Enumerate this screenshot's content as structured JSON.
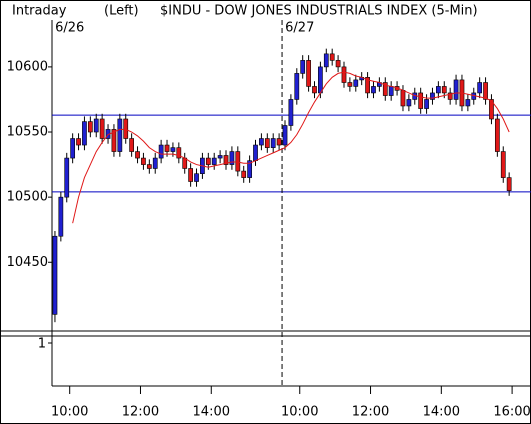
{
  "chart_data": {
    "type": "candlestick",
    "header": [
      "Intraday",
      "(Left)",
      "$INDU - DOW JONES INDUSTRIALS INDEX (5-Min)"
    ],
    "x": [
      0,
      1,
      2,
      3,
      4,
      5,
      6,
      7,
      8,
      9,
      10,
      11,
      12,
      13,
      14,
      15,
      16,
      17,
      18,
      19,
      20,
      21,
      22,
      23,
      24,
      25,
      26,
      27,
      28,
      29,
      30,
      31,
      32,
      33,
      34,
      35,
      36,
      37,
      38,
      39,
      40,
      41,
      42,
      43,
      44,
      45,
      46,
      47,
      48,
      49,
      50,
      51,
      52,
      53,
      54,
      55,
      56,
      57,
      58,
      59,
      60,
      61,
      62,
      63,
      64,
      65,
      66,
      67,
      68,
      69,
      70,
      71,
      72,
      73,
      74,
      75,
      76,
      77
    ],
    "open": [
      10410,
      10470,
      10500,
      10530,
      10545,
      10540,
      10558,
      10550,
      10560,
      10545,
      10552,
      10535,
      10560,
      10545,
      10535,
      10530,
      10525,
      10522,
      10530,
      10540,
      10535,
      10538,
      10530,
      10522,
      10512,
      10518,
      10530,
      10525,
      10530,
      10532,
      10525,
      10535,
      10520,
      10515,
      10528,
      10540,
      10545,
      10538,
      10545,
      10540,
      10555,
      10575,
      10595,
      10605,
      10585,
      10580,
      10600,
      10610,
      10605,
      10600,
      10588,
      10585,
      10590,
      10592,
      10580,
      10585,
      10588,
      10578,
      10585,
      10582,
      10570,
      10575,
      10580,
      10568,
      10575,
      10580,
      10585,
      10580,
      10575,
      10590,
      10570,
      10575,
      10580,
      10588,
      10575,
      10560,
      10535,
      10515
    ],
    "high": [
      10474,
      10504,
      10534,
      10549,
      10549,
      10562,
      10562,
      10564,
      10564,
      10556,
      10556,
      10564,
      10564,
      10549,
      10539,
      10534,
      10529,
      10534,
      10544,
      10544,
      10542,
      10542,
      10534,
      10526,
      10522,
      10534,
      10534,
      10534,
      10536,
      10536,
      10539,
      10539,
      10524,
      10532,
      10544,
      10549,
      10549,
      10549,
      10549,
      10559,
      10579,
      10599,
      10609,
      10609,
      10589,
      10604,
      10614,
      10614,
      10609,
      10604,
      10592,
      10594,
      10596,
      10596,
      10589,
      10592,
      10592,
      10589,
      10589,
      10586,
      10579,
      10584,
      10584,
      10579,
      10584,
      10589,
      10589,
      10584,
      10594,
      10594,
      10579,
      10584,
      10592,
      10592,
      10579,
      10564,
      10539,
      10519
    ],
    "low": [
      10404,
      10466,
      10496,
      10526,
      10536,
      10536,
      10546,
      10546,
      10541,
      10541,
      10531,
      10531,
      10541,
      10531,
      10526,
      10521,
      10518,
      10518,
      10526,
      10531,
      10531,
      10526,
      10518,
      10508,
      10508,
      10514,
      10521,
      10521,
      10526,
      10521,
      10521,
      10516,
      10511,
      10511,
      10524,
      10536,
      10534,
      10534,
      10536,
      10536,
      10551,
      10571,
      10591,
      10581,
      10576,
      10576,
      10596,
      10601,
      10596,
      10584,
      10581,
      10581,
      10586,
      10576,
      10576,
      10581,
      10574,
      10574,
      10578,
      10566,
      10566,
      10571,
      10564,
      10564,
      10571,
      10576,
      10576,
      10571,
      10571,
      10566,
      10566,
      10571,
      10576,
      10571,
      10556,
      10531,
      10511,
      10501
    ],
    "close": [
      10470,
      10500,
      10530,
      10545,
      10540,
      10558,
      10550,
      10560,
      10545,
      10552,
      10535,
      10560,
      10545,
      10535,
      10530,
      10525,
      10522,
      10530,
      10540,
      10535,
      10538,
      10530,
      10522,
      10512,
      10518,
      10530,
      10525,
      10530,
      10532,
      10525,
      10535,
      10520,
      10515,
      10528,
      10540,
      10545,
      10538,
      10545,
      10540,
      10555,
      10575,
      10595,
      10605,
      10585,
      10580,
      10600,
      10610,
      10605,
      10600,
      10588,
      10585,
      10590,
      10592,
      10580,
      10585,
      10588,
      10578,
      10585,
      10582,
      10570,
      10575,
      10580,
      10568,
      10575,
      10580,
      10585,
      10580,
      10575,
      10590,
      10570,
      10575,
      10580,
      10588,
      10575,
      10560,
      10535,
      10515,
      10505
    ],
    "up_color": "#2020d0",
    "down_color": "#e01818",
    "moving_average": {
      "color": "#e01818",
      "values": [
        null,
        null,
        null,
        10480,
        10500,
        10515,
        10525,
        10535,
        10542,
        10548,
        10550,
        10552,
        10552,
        10550,
        10547,
        10543,
        10538,
        10535,
        10533,
        10533,
        10533,
        10532,
        10530,
        10527,
        10525,
        10524,
        10523,
        10524,
        10525,
        10526,
        10527,
        10527,
        10526,
        10526,
        10528,
        10530,
        10532,
        10534,
        10536,
        10538,
        10542,
        10548,
        10556,
        10565,
        10573,
        10580,
        10587,
        10592,
        10595,
        10596,
        10595,
        10593,
        10592,
        10590,
        10589,
        10588,
        10586,
        10585,
        10584,
        10582,
        10580,
        10578,
        10577,
        10576,
        10576,
        10577,
        10578,
        10579,
        10580,
        10580,
        10579,
        10578,
        10577,
        10576,
        10574,
        10568,
        10560,
        10550
      ]
    },
    "hlines": [
      10563,
      10504
    ],
    "hline_color": "#0000c0",
    "session_break": 38.5,
    "date_labels": [
      {
        "value": 2.5,
        "label": "6/26"
      },
      {
        "value": 41.5,
        "label": "6/27"
      }
    ],
    "xlim": [
      -0.5,
      78.5
    ],
    "xticks": [
      {
        "value": 2.5,
        "label": "10:00"
      },
      {
        "value": 14.5,
        "label": "12:00"
      },
      {
        "value": 26.5,
        "label": "14:00"
      },
      {
        "value": 41.5,
        "label": "10:00"
      },
      {
        "value": 53.5,
        "label": "12:00"
      },
      {
        "value": 65.5,
        "label": "14:00"
      },
      {
        "value": 77.5,
        "label": "16:00"
      }
    ],
    "ylim": [
      10398,
      10636
    ],
    "yticks": [
      10450,
      10500,
      10550,
      10600
    ],
    "lower_panel": {
      "yticks": [
        1
      ]
    }
  }
}
